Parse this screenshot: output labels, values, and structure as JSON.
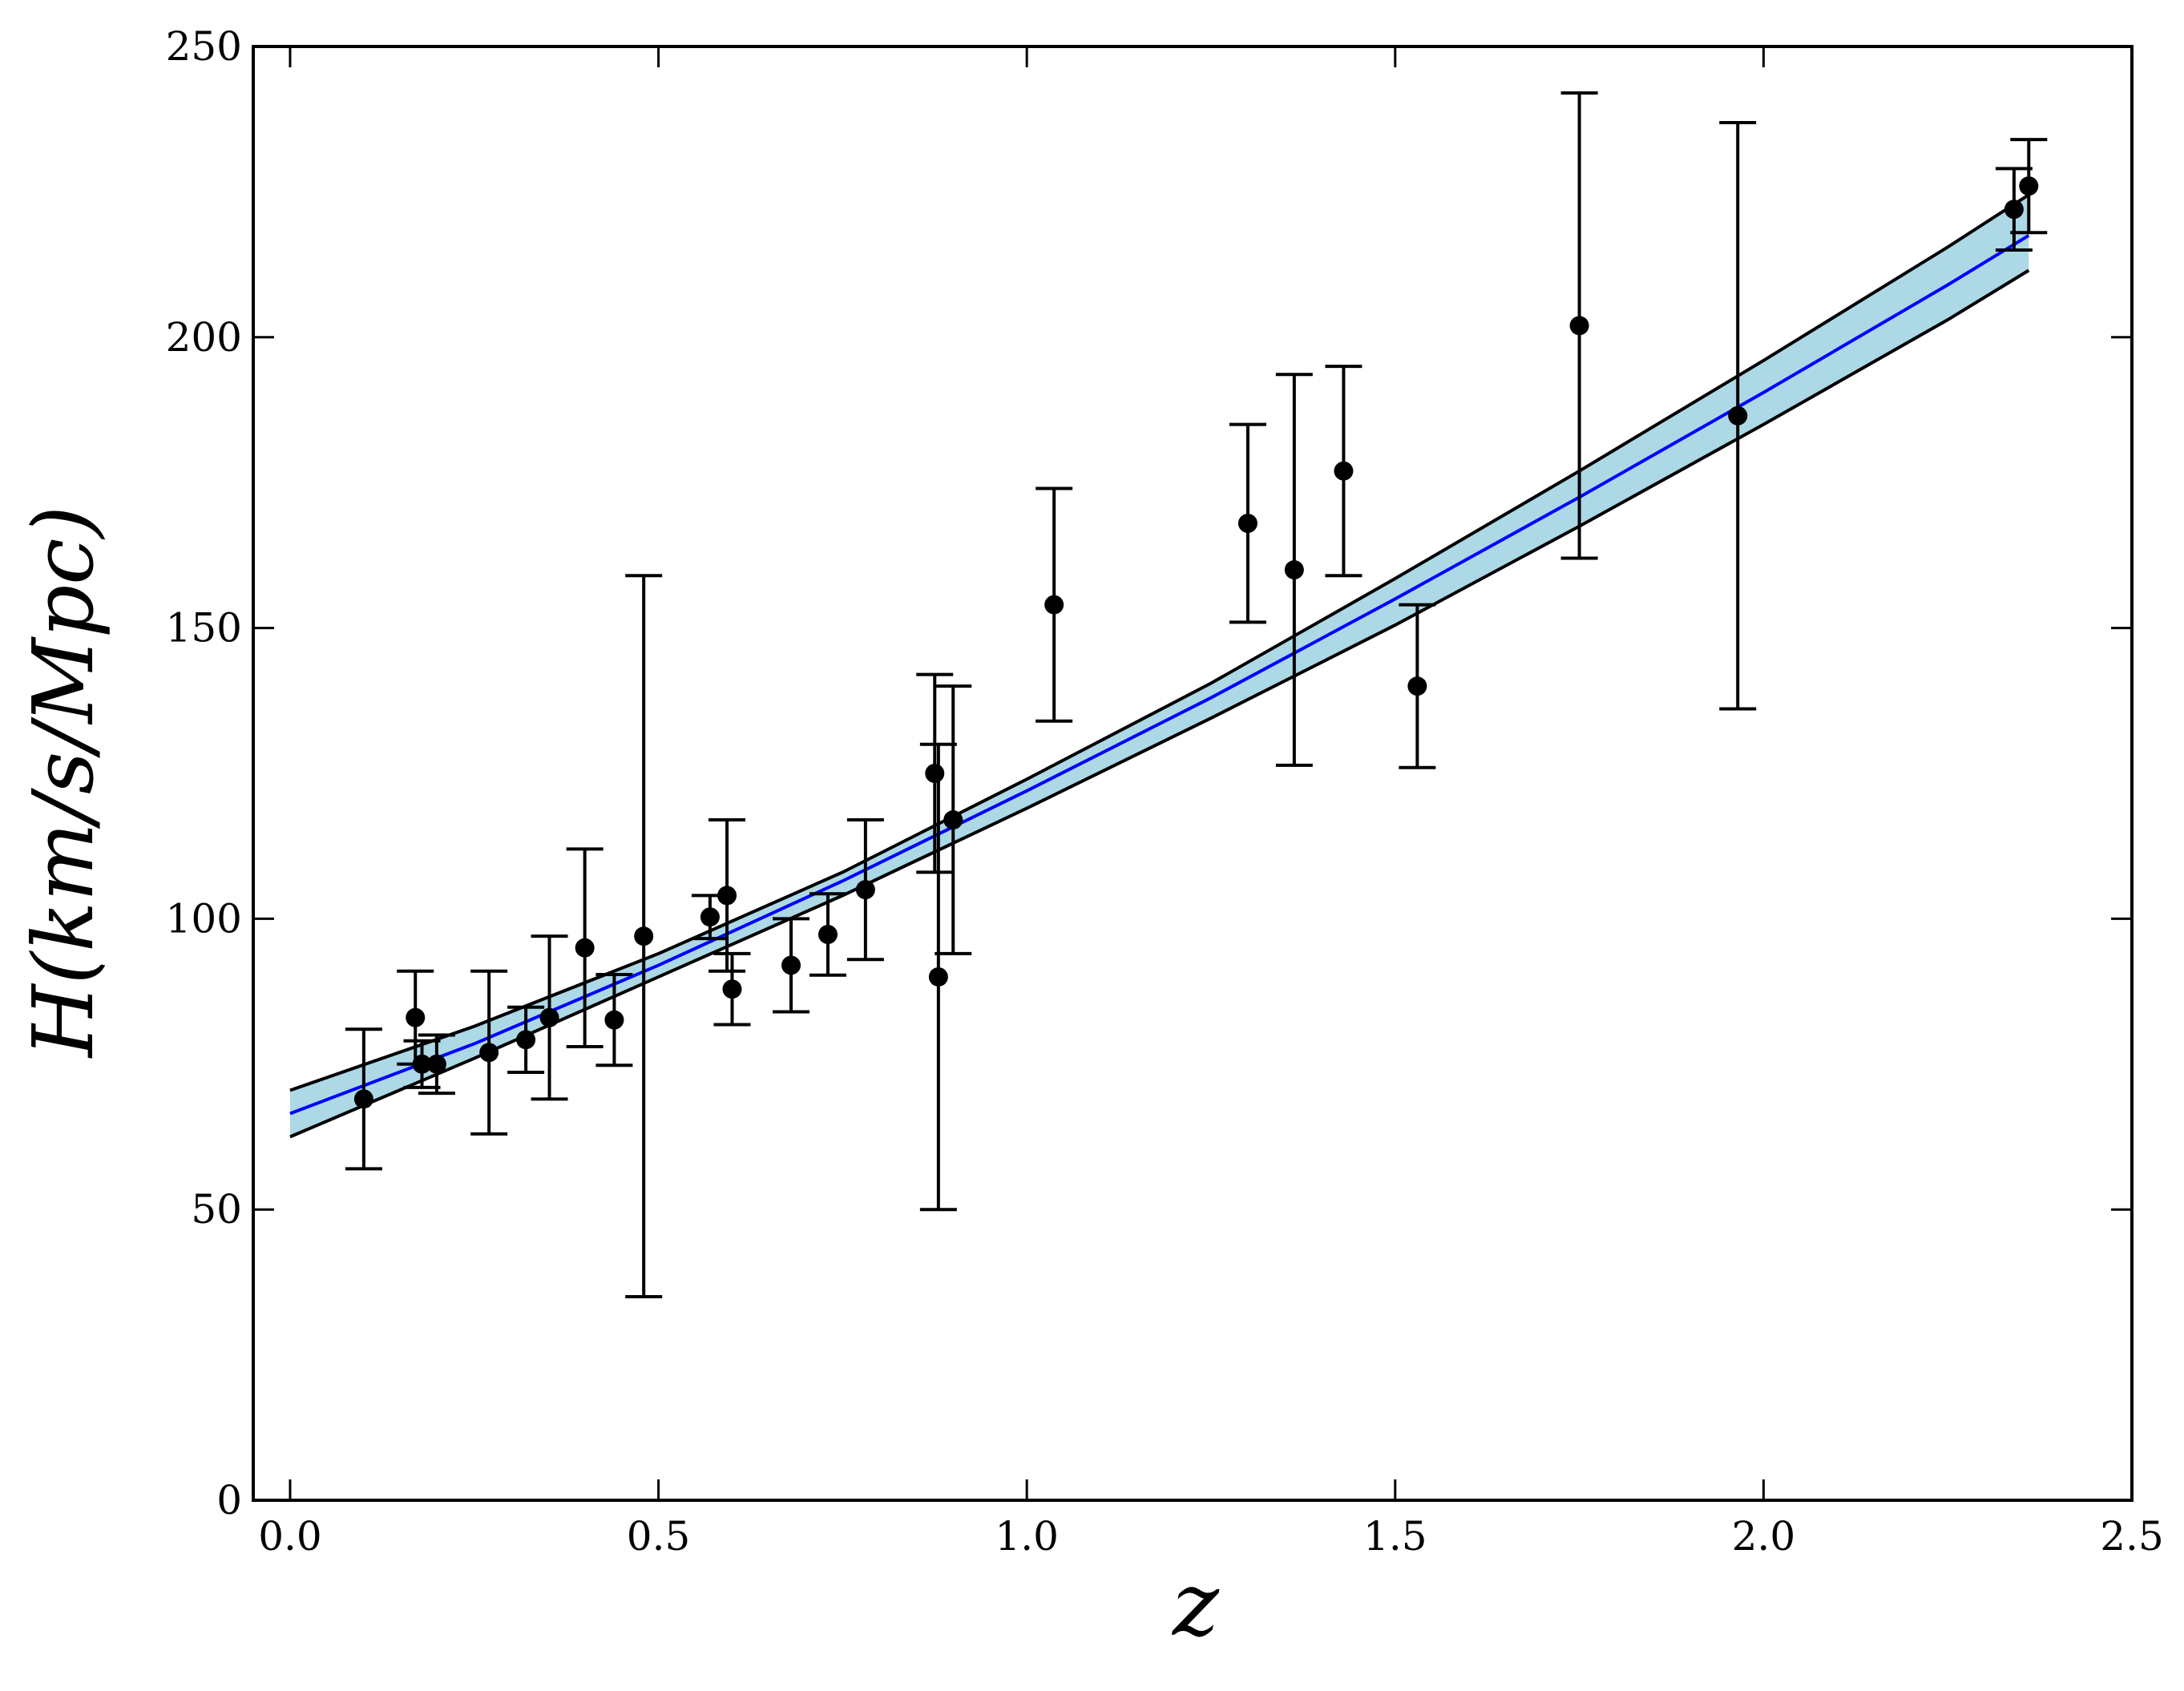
{
  "chart_data": {
    "type": "scatter",
    "title": "",
    "xlabel": "z",
    "ylabel": "H(km/s/Mpc)",
    "xlim": [
      -0.05,
      2.5
    ],
    "ylim": [
      0,
      250
    ],
    "xticks": [
      "0.0",
      "0.5",
      "1.0",
      "1.5",
      "2.0",
      "2.5"
    ],
    "yticks": [
      "0",
      "50",
      "100",
      "150",
      "200",
      "250"
    ],
    "grid": false,
    "legend": "none",
    "colors": {
      "points": "#000000",
      "fit_line": "#0000ff",
      "band_fill": "#add8e6",
      "band_edge": "#000000"
    },
    "series": [
      {
        "type": "scatter-errorbar",
        "x": [
          0.1,
          0.17,
          0.179,
          0.199,
          0.27,
          0.32,
          0.352,
          0.4,
          0.44,
          0.48,
          0.57,
          0.593,
          0.6,
          0.68,
          0.73,
          0.781,
          0.875,
          0.88,
          0.9,
          1.037,
          1.3,
          1.363,
          1.43,
          1.53,
          1.75,
          1.965,
          2.34,
          2.36
        ],
        "y": [
          69,
          83,
          75,
          75,
          77,
          79.2,
          83,
          95,
          82.6,
          97,
          100.3,
          104,
          87.9,
          92,
          97.3,
          105,
          125,
          90,
          117,
          154,
          168,
          160,
          177,
          140,
          202,
          186.5,
          222,
          226
        ],
        "err": [
          12,
          8,
          4,
          5,
          14,
          5.6,
          14,
          17,
          7.8,
          62,
          3.7,
          13,
          6.1,
          8,
          7,
          12,
          17,
          40,
          23,
          20,
          17,
          33.6,
          18,
          14,
          40,
          50.4,
          7,
          8
        ]
      },
      {
        "type": "line",
        "x": [
          0.0,
          0.25,
          0.5,
          0.75,
          1.0,
          1.25,
          1.5,
          1.75,
          2.0,
          2.25,
          2.36
        ],
        "y": [
          66.5,
          78.5,
          92,
          106.5,
          122,
          138,
          155,
          172.5,
          190.5,
          209,
          217.5
        ],
        "band_upper": [
          70.5,
          81.5,
          94,
          108,
          124,
          140.5,
          158.5,
          177,
          196,
          215.5,
          224.5
        ],
        "band_lower": [
          62.5,
          76,
          90,
          104,
          119,
          134.5,
          150.5,
          167.5,
          185,
          203,
          211.5
        ]
      }
    ]
  }
}
